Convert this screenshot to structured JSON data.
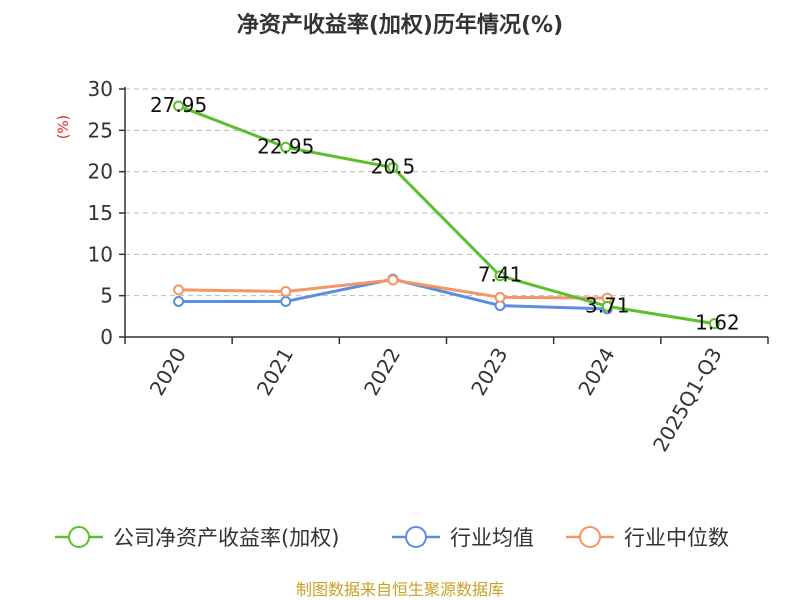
{
  "colors": {
    "company": "#5cc02a",
    "industry_avg": "#5b8ee0",
    "industry_median": "#f59563",
    "ylabel": "#e02020",
    "source": "#c9a227"
  },
  "chart_data": {
    "type": "line",
    "title": "净资产收益率(加权)历年情况(%)",
    "ylabel": "(%)",
    "xlabel": "",
    "categories": [
      "2020",
      "2021",
      "2022",
      "2023",
      "2024",
      "2025Q1-Q3"
    ],
    "ylim": [
      0,
      30
    ],
    "yticks": [
      0,
      5,
      10,
      15,
      20,
      25,
      30
    ],
    "grid": true,
    "legend_position": "bottom",
    "series": [
      {
        "name": "公司净资产收益率(加权)",
        "color": "#5cc02a",
        "values": [
          27.95,
          22.95,
          20.5,
          7.41,
          3.71,
          1.62
        ],
        "labels": [
          "27.95",
          "22.95",
          "20.5",
          "7.41",
          "3.71",
          "1.62"
        ]
      },
      {
        "name": "行业均值",
        "color": "#5b8ee0",
        "values": [
          4.3,
          4.3,
          7.0,
          3.8,
          3.4,
          null
        ]
      },
      {
        "name": "行业中位数",
        "color": "#f59563",
        "values": [
          5.7,
          5.5,
          6.9,
          4.8,
          4.7,
          null
        ]
      }
    ]
  },
  "source": "制图数据来自恒生聚源数据库"
}
